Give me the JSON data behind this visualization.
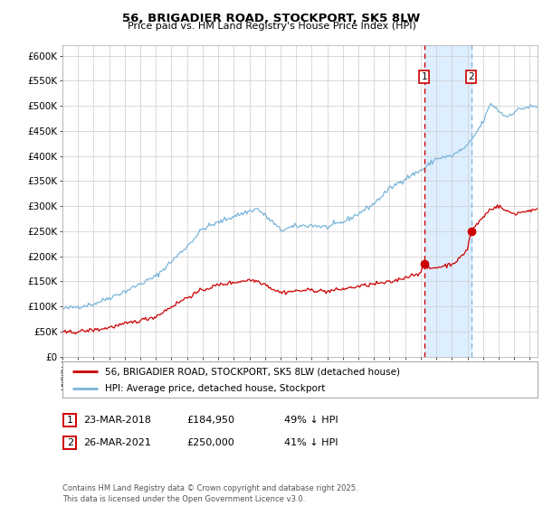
{
  "title": "56, BRIGADIER ROAD, STOCKPORT, SK5 8LW",
  "subtitle": "Price paid vs. HM Land Registry's House Price Index (HPI)",
  "ylim": [
    0,
    620000
  ],
  "yticks": [
    0,
    50000,
    100000,
    150000,
    200000,
    250000,
    300000,
    350000,
    400000,
    450000,
    500000,
    550000,
    600000
  ],
  "ytick_labels": [
    "£0",
    "£50K",
    "£100K",
    "£150K",
    "£200K",
    "£250K",
    "£300K",
    "£350K",
    "£400K",
    "£450K",
    "£500K",
    "£550K",
    "£600K"
  ],
  "hpi_color": "#7ab5d9",
  "price_color": "#cc0000",
  "transaction1_date": 2018.22,
  "transaction1_price": 184950,
  "transaction2_date": 2021.23,
  "transaction2_price": 250000,
  "vline_color": "#cc0000",
  "vline2_color": "#8ab8d8",
  "shade_color": "#ddeeff",
  "background_color": "#ffffff",
  "grid_color": "#cccccc",
  "legend_label_red": "56, BRIGADIER ROAD, STOCKPORT, SK5 8LW (detached house)",
  "legend_label_blue": "HPI: Average price, detached house, Stockport",
  "footer": "Contains HM Land Registry data © Crown copyright and database right 2025.\nThis data is licensed under the Open Government Licence v3.0.",
  "row1_num": "1",
  "row1_date": "23-MAR-2018",
  "row1_price": "£184,950",
  "row1_hpi": "49% ↓ HPI",
  "row2_num": "2",
  "row2_date": "26-MAR-2021",
  "row2_price": "£250,000",
  "row2_hpi": "41% ↓ HPI"
}
